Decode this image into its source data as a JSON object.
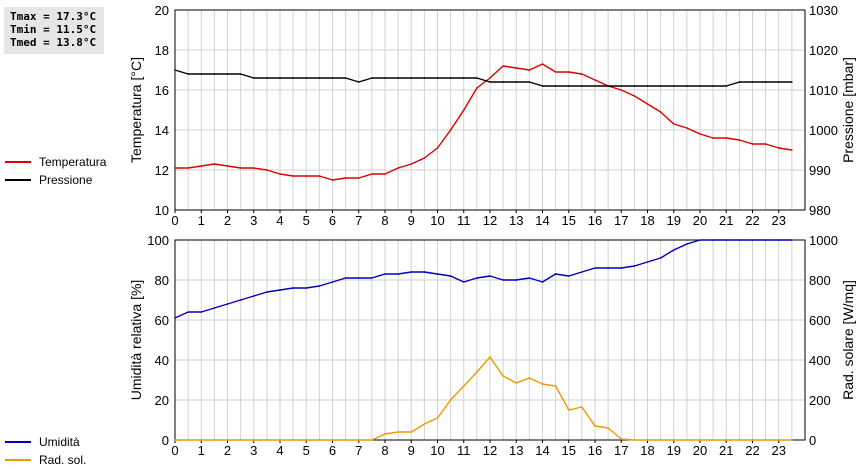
{
  "stats": {
    "tmax": "Tmax = 17.3°C",
    "tmin": "Tmin = 11.5°C",
    "tmed": "Tmed = 13.8°C"
  },
  "chart_data": [
    {
      "type": "line",
      "x_ticks": [
        "0",
        "1",
        "2",
        "3",
        "4",
        "5",
        "6",
        "7",
        "8",
        "9",
        "10",
        "11",
        "12",
        "13",
        "14",
        "15",
        "16",
        "17",
        "18",
        "19",
        "20",
        "21",
        "22",
        "23"
      ],
      "xlim": [
        0,
        24
      ],
      "ylabel": "Temperatura [°C]",
      "ylabel_right": "Pressione [mbar]",
      "ylim": [
        10,
        20
      ],
      "y_ticks": [
        "10",
        "12",
        "14",
        "16",
        "18",
        "20"
      ],
      "ylim_right": [
        980,
        1030
      ],
      "y_ticks_right": [
        "980",
        "990",
        "1000",
        "1010",
        "1020",
        "1030"
      ],
      "grid": true,
      "series": [
        {
          "name": "Temperatura",
          "color": "#dd0000",
          "axis": "left",
          "x": [
            0,
            0.5,
            1,
            1.5,
            2,
            2.5,
            3,
            3.5,
            4,
            4.5,
            5,
            5.5,
            6,
            6.5,
            7,
            7.5,
            8,
            8.5,
            9,
            9.5,
            10,
            10.5,
            11,
            11.5,
            12,
            12.5,
            13,
            13.5,
            14,
            14.5,
            15,
            15.5,
            16,
            16.5,
            17,
            17.5,
            18,
            18.5,
            19,
            19.5,
            20,
            20.5,
            21,
            21.5,
            22,
            22.5,
            23,
            23.5
          ],
          "y": [
            12.1,
            12.1,
            12.2,
            12.3,
            12.2,
            12.1,
            12.1,
            12.0,
            11.8,
            11.7,
            11.7,
            11.7,
            11.5,
            11.6,
            11.6,
            11.8,
            11.8,
            12.1,
            12.3,
            12.6,
            13.1,
            14.0,
            15.0,
            16.1,
            16.6,
            17.2,
            17.1,
            17.0,
            17.3,
            16.9,
            16.9,
            16.8,
            16.5,
            16.2,
            16.0,
            15.7,
            15.3,
            14.9,
            14.3,
            14.1,
            13.8,
            13.6,
            13.6,
            13.5,
            13.3,
            13.3,
            13.1,
            13.0
          ]
        },
        {
          "name": "Pressione",
          "color": "#000000",
          "axis": "right",
          "x": [
            0,
            0.5,
            1,
            1.5,
            2,
            2.5,
            3,
            3.5,
            4,
            4.5,
            5,
            5.5,
            6,
            6.5,
            7,
            7.5,
            8,
            8.5,
            9,
            9.5,
            10,
            10.5,
            11,
            11.5,
            12,
            12.5,
            13,
            13.5,
            14,
            14.5,
            15,
            15.5,
            16,
            16.5,
            17,
            17.5,
            18,
            18.5,
            19,
            19.5,
            20,
            20.5,
            21,
            21.5,
            22,
            22.5,
            23,
            23.5
          ],
          "y": [
            1015,
            1014,
            1014,
            1014,
            1014,
            1014,
            1013,
            1013,
            1013,
            1013,
            1013,
            1013,
            1013,
            1013,
            1012,
            1013,
            1013,
            1013,
            1013,
            1013,
            1013,
            1013,
            1013,
            1013,
            1012,
            1012,
            1012,
            1012,
            1011,
            1011,
            1011,
            1011,
            1011,
            1011,
            1011,
            1011,
            1011,
            1011,
            1011,
            1011,
            1011,
            1011,
            1011,
            1012,
            1012,
            1012,
            1012,
            1012
          ]
        }
      ]
    },
    {
      "type": "line",
      "x_ticks": [
        "0",
        "1",
        "2",
        "3",
        "4",
        "5",
        "6",
        "7",
        "8",
        "9",
        "10",
        "11",
        "12",
        "13",
        "14",
        "15",
        "16",
        "17",
        "18",
        "19",
        "20",
        "21",
        "22",
        "23"
      ],
      "xlim": [
        0,
        24
      ],
      "ylabel": "Umidità relativa [%]",
      "ylabel_right": "Rad. solare [W/mq]",
      "ylim": [
        0,
        100
      ],
      "y_ticks": [
        "0",
        "20",
        "40",
        "60",
        "80",
        "100"
      ],
      "ylim_right": [
        0,
        1000
      ],
      "y_ticks_right": [
        "0",
        "200",
        "400",
        "600",
        "800",
        "1000"
      ],
      "grid": true,
      "series": [
        {
          "name": "Umidità",
          "color": "#0000bb",
          "axis": "left",
          "x": [
            0,
            0.5,
            1,
            1.5,
            2,
            2.5,
            3,
            3.5,
            4,
            4.5,
            5,
            5.5,
            6,
            6.5,
            7,
            7.5,
            8,
            8.5,
            9,
            9.5,
            10,
            10.5,
            11,
            11.5,
            12,
            12.5,
            13,
            13.5,
            14,
            14.5,
            15,
            15.5,
            16,
            16.5,
            17,
            17.5,
            18,
            18.5,
            19,
            19.5,
            20,
            20.5,
            21,
            21.5,
            22,
            22.5,
            23,
            23.5
          ],
          "y": [
            61,
            64,
            64,
            66,
            68,
            70,
            72,
            74,
            75,
            76,
            76,
            77,
            79,
            81,
            81,
            81,
            83,
            83,
            84,
            84,
            83,
            82,
            79,
            81,
            82,
            80,
            80,
            81,
            79,
            83,
            82,
            84,
            86,
            86,
            86,
            87,
            89,
            91,
            95,
            98,
            100,
            100,
            100,
            100,
            100,
            100,
            100,
            100
          ]
        },
        {
          "name": "Rad. sol.",
          "color": "#ee9900",
          "axis": "right",
          "x": [
            0,
            0.5,
            1,
            1.5,
            2,
            2.5,
            3,
            3.5,
            4,
            4.5,
            5,
            5.5,
            6,
            6.5,
            7,
            7.5,
            8,
            8.5,
            9,
            9.5,
            10,
            10.5,
            11,
            11.5,
            12,
            12.5,
            13,
            13.5,
            14,
            14.5,
            15,
            15.5,
            16,
            16.5,
            17,
            17.5,
            18,
            18.5,
            19,
            19.5,
            20,
            20.5,
            21,
            21.5,
            22,
            22.5,
            23,
            23.5
          ],
          "y": [
            0,
            0,
            0,
            0,
            0,
            0,
            0,
            0,
            0,
            0,
            0,
            0,
            0,
            0,
            0,
            0,
            30,
            40,
            40,
            80,
            110,
            200,
            270,
            340,
            415,
            320,
            285,
            310,
            280,
            270,
            150,
            165,
            70,
            60,
            5,
            0,
            0,
            0,
            0,
            0,
            0,
            0,
            0,
            0,
            0,
            0,
            0,
            0
          ]
        }
      ]
    }
  ]
}
